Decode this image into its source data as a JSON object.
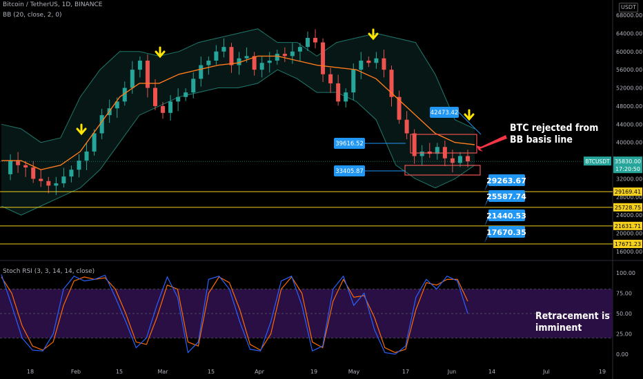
{
  "header": {
    "symbol_line": "Bitcoin / TetherUS, 1D, BINANCE",
    "indicator_line": "BB (20, close, 2, 0)",
    "rsi_line": "Stoch RSI (3, 3, 14, 14, close)",
    "currency_badge": "USDT"
  },
  "annotations": {
    "top_line1": "BTC rejected from",
    "top_line2": "BB basis line",
    "bottom_line1": "Retracement is",
    "bottom_line2": "imminent"
  },
  "colors": {
    "background": "#000000",
    "bull": "#26a69a",
    "bear": "#ef5350",
    "bb_basis": "#ff7b1c",
    "bb_band": "#1e7a6e",
    "level": "#f5d11d",
    "label_blue": "#2196f3",
    "rsi_k": "#2962ff",
    "rsi_d": "#ff6d00",
    "rsi_bg": "#2a0f45",
    "arrow_yellow": "#ffe500",
    "arrow_red": "#f23645"
  },
  "chart_data": [
    {
      "type": "candlestick",
      "title": "Bitcoin / TetherUS, 1D, BINANCE",
      "x_ticks": [
        "18",
        "Feb",
        "15",
        "Mar",
        "15",
        "Apr",
        "19",
        "May",
        "17",
        "Jun",
        "14",
        "Jul",
        "19"
      ],
      "y_ticks": [
        "16000.00",
        "20000.00",
        "24000.00",
        "28000.00",
        "32000.00",
        "36000.00",
        "40000.00",
        "44000.00",
        "48000.00",
        "52000.00",
        "56000.00",
        "60000.00",
        "64000.00",
        "68000.00"
      ],
      "ylim": [
        16000,
        69000
      ],
      "series": [
        {
          "name": "BTCUSDT",
          "close_path": [
            33000,
            36000,
            35000,
            34500,
            32000,
            31500,
            30500,
            31000,
            32500,
            34000,
            36000,
            38000,
            42000,
            46000,
            47500,
            49000,
            52000,
            56000,
            58000,
            52000,
            48000,
            46500,
            49000,
            50000,
            51000,
            54000,
            57000,
            58000,
            60000,
            61000,
            57000,
            58500,
            59000,
            56000,
            57500,
            58000,
            59500,
            59000,
            60000,
            61000,
            63000,
            62000,
            55000,
            53000,
            49000,
            51000,
            56000,
            58000,
            57500,
            58500,
            56000,
            50000,
            45000,
            42000,
            37000,
            38000,
            37500,
            39000,
            36500,
            35500,
            37000,
            35830
          ]
        },
        {
          "name": "BB upper",
          "values": [
            44000,
            43000,
            40000,
            41000,
            50000,
            56000,
            60000,
            60000,
            59000,
            60000,
            62000,
            63000,
            64000,
            65000,
            62000,
            62000,
            59000,
            62000,
            63000,
            64000,
            63000,
            62000,
            55000,
            45000,
            43000
          ]
        },
        {
          "name": "BB basis",
          "values": [
            36000,
            36000,
            34000,
            35000,
            38000,
            44000,
            50000,
            53000,
            53000,
            55000,
            56000,
            57000,
            57500,
            59000,
            59000,
            58000,
            57000,
            56500,
            56000,
            54000,
            50000,
            46000,
            42000,
            40000,
            39500
          ]
        },
        {
          "name": "BB lower",
          "values": [
            26000,
            24000,
            26000,
            28000,
            30000,
            34000,
            40000,
            46000,
            48000,
            50000,
            51000,
            52000,
            52000,
            53000,
            56000,
            54000,
            51000,
            51000,
            49000,
            45000,
            35000,
            32000,
            30000,
            32000,
            35000
          ]
        }
      ],
      "price_tag": {
        "symbol": "BTCUSDT",
        "price": "35830.00",
        "countdown": "17:20:50"
      },
      "levels": [
        {
          "value": "29169.41",
          "target_label": "29263.67"
        },
        {
          "value": "25728.75",
          "target_label": "25587.74"
        },
        {
          "value": "21631.71",
          "target_label": "21440.53"
        },
        {
          "value": "17671.23",
          "target_label": "17670.35"
        }
      ],
      "box_labels": [
        "42473.42",
        "39616.52",
        "33405.87"
      ]
    },
    {
      "type": "line",
      "title": "Stoch RSI (3, 3, 14, 14, close)",
      "y_ticks": [
        "100.00",
        "75.00",
        "50.00",
        "25.00",
        "0.00"
      ],
      "ylim": [
        0,
        100
      ],
      "band": [
        20,
        80
      ],
      "series": [
        {
          "name": "K",
          "values": [
            98,
            60,
            20,
            5,
            4,
            25,
            80,
            96,
            90,
            92,
            97,
            70,
            40,
            8,
            20,
            60,
            95,
            70,
            2,
            15,
            92,
            96,
            80,
            40,
            6,
            4,
            40,
            90,
            96,
            60,
            4,
            10,
            80,
            96,
            60,
            75,
            30,
            2,
            0,
            10,
            70,
            92,
            80,
            96,
            90,
            50
          ]
        },
        {
          "name": "D",
          "values": [
            95,
            75,
            35,
            10,
            5,
            15,
            60,
            90,
            95,
            92,
            94,
            80,
            50,
            15,
            12,
            45,
            85,
            80,
            15,
            10,
            75,
            95,
            88,
            55,
            12,
            5,
            25,
            80,
            95,
            75,
            15,
            8,
            65,
            92,
            70,
            72,
            45,
            8,
            2,
            6,
            55,
            88,
            85,
            92,
            92,
            65
          ]
        }
      ]
    }
  ]
}
